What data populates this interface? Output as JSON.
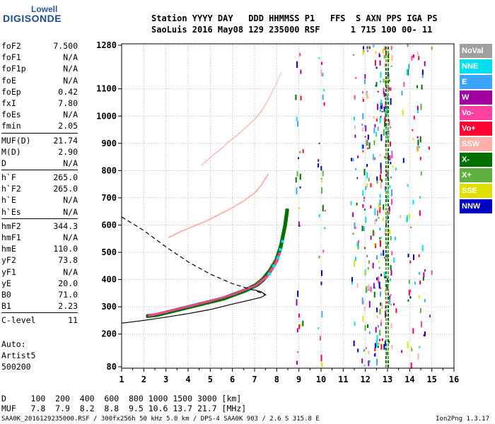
{
  "logo": {
    "line1": "Lowell",
    "line2": "DIGISONDE"
  },
  "header": {
    "labels": "Station YYYY DAY   DDD HHMMSS P1   FFS  S AXN PPS IGA PS",
    "values": "SaoLuis 2016 May08 129 235000 RSF      1 715 100 00- 11"
  },
  "params": {
    "group1": [
      {
        "name": "foF2",
        "value": "7.500"
      },
      {
        "name": "foF1",
        "value": "N/A"
      },
      {
        "name": "foF1p",
        "value": "N/A"
      },
      {
        "name": "foE",
        "value": "N/A"
      },
      {
        "name": "foEp",
        "value": "0.42"
      },
      {
        "name": "fxI",
        "value": "7.80"
      },
      {
        "name": "foEs",
        "value": "N/A"
      },
      {
        "name": "fmin",
        "value": "2.05"
      }
    ],
    "group2": [
      {
        "name": "MUF(D)",
        "value": "21.74"
      },
      {
        "name": "M(D)",
        "value": "2.90"
      },
      {
        "name": "D",
        "value": "N/A"
      }
    ],
    "group3": [
      {
        "name": "h`F",
        "value": "265.0"
      },
      {
        "name": "h`F2",
        "value": "265.0"
      },
      {
        "name": "h`E",
        "value": "N/A"
      },
      {
        "name": "h`Es",
        "value": "N/A"
      }
    ],
    "group4": [
      {
        "name": "hmF2",
        "value": "344.3"
      },
      {
        "name": "hmF1",
        "value": "N/A"
      },
      {
        "name": "hmE",
        "value": "110.0"
      },
      {
        "name": "yF2",
        "value": "73.8"
      },
      {
        "name": "yF1",
        "value": "N/A"
      },
      {
        "name": "yE",
        "value": "20.0"
      },
      {
        "name": "B0",
        "value": "71.0"
      },
      {
        "name": "B1",
        "value": "2.23"
      }
    ],
    "group5": [
      {
        "name": "C-level",
        "value": "11"
      }
    ]
  },
  "auto": {
    "line1": "Auto:",
    "line2": "Artist5",
    "line3": "500200"
  },
  "dtable": {
    "row1": "D     100  200  400  600  800 1000 1500 3000 [km]",
    "row2": "MUF   7.8  7.9  8.2  8.8  9.5 10.6 13.7 21.7 [MHz]"
  },
  "footer": {
    "left": "SAA0K_2016129235000.RSF / 300fx256h 50 kHz 5.0 km / DPS-4 SAA0K 903 / 2.6 S 315.8 E",
    "right": "Ion2Png 1.3.17"
  },
  "legend": [
    {
      "label": "NoVal",
      "color": "#a0a0a0"
    },
    {
      "label": "NNE",
      "color": "#00e0f0"
    },
    {
      "label": "E",
      "color": "#3aa6ff"
    },
    {
      "label": "W",
      "color": "#a000a0"
    },
    {
      "label": "Vo-",
      "color": "#ff40a0"
    },
    {
      "label": "Vo+",
      "color": "#ff0030"
    },
    {
      "label": "SSW",
      "color": "#ffb0a8"
    },
    {
      "label": "X-",
      "color": "#007000"
    },
    {
      "label": "X+",
      "color": "#60b040"
    },
    {
      "label": "SSE",
      "color": "#e0e000"
    },
    {
      "label": "NNW",
      "color": "#0000c0"
    }
  ],
  "chart_data": {
    "type": "scatter",
    "x_ticks": [
      "1",
      "2",
      "3",
      "4",
      "5",
      "6",
      "7",
      "8",
      "9",
      "10",
      "11",
      "12",
      "13",
      "14",
      "15",
      "16"
    ],
    "y_ticks": [
      "80",
      "200",
      "300",
      "400",
      "500",
      "600",
      "700",
      "800",
      "900",
      "1000",
      "1100",
      "1280"
    ],
    "xlim": [
      1,
      16
    ],
    "ylim": [
      80,
      1280
    ],
    "grid": true,
    "ordinary_trace": {
      "color": "#007000",
      "points": [
        [
          2.1,
          266
        ],
        [
          2.5,
          270
        ],
        [
          3.0,
          280
        ],
        [
          3.5,
          290
        ],
        [
          4.0,
          300
        ],
        [
          4.5,
          310
        ],
        [
          5.0,
          320
        ],
        [
          5.5,
          330
        ],
        [
          6.0,
          345
        ],
        [
          6.5,
          360
        ],
        [
          7.0,
          380
        ],
        [
          7.3,
          400
        ],
        [
          7.6,
          430
        ],
        [
          7.9,
          470
        ],
        [
          8.1,
          520
        ],
        [
          8.3,
          600
        ],
        [
          8.4,
          660
        ]
      ]
    },
    "extra_trace": {
      "color": "#ff40a0",
      "points": [
        [
          2.2,
          268
        ],
        [
          3.0,
          282
        ],
        [
          4.0,
          302
        ],
        [
          5.0,
          322
        ],
        [
          6.0,
          346
        ],
        [
          7.0,
          378
        ],
        [
          7.5,
          410
        ],
        [
          7.9,
          460
        ],
        [
          8.1,
          500
        ]
      ]
    },
    "multihop_trace": {
      "color": "#ffb0a8",
      "points": [
        [
          3.1,
          555
        ],
        [
          3.6,
          575
        ],
        [
          4.2,
          595
        ],
        [
          4.8,
          615
        ],
        [
          5.4,
          640
        ],
        [
          6.0,
          665
        ],
        [
          6.5,
          690
        ],
        [
          7.0,
          720
        ],
        [
          7.3,
          750
        ],
        [
          7.6,
          790
        ]
      ]
    },
    "third_trace": {
      "color": "#ffb0a8",
      "points": [
        [
          4.6,
          820
        ],
        [
          5.0,
          850
        ],
        [
          5.4,
          875
        ],
        [
          5.8,
          905
        ],
        [
          6.2,
          930
        ],
        [
          6.6,
          960
        ],
        [
          7.0,
          990
        ],
        [
          7.3,
          1020
        ],
        [
          7.6,
          1060
        ],
        [
          7.9,
          1110
        ],
        [
          8.2,
          1170
        ]
      ]
    },
    "profile_solid": [
      [
        1.0,
        240
      ],
      [
        2.0,
        250
      ],
      [
        3.0,
        262
      ],
      [
        4.0,
        275
      ],
      [
        5.0,
        290
      ],
      [
        6.0,
        310
      ],
      [
        6.8,
        325
      ],
      [
        7.3,
        335
      ],
      [
        7.5,
        344
      ],
      [
        7.3,
        355
      ],
      [
        7.0,
        362
      ]
    ],
    "profile_dashed": [
      [
        1.0,
        630
      ],
      [
        2.0,
        580
      ],
      [
        3.0,
        520
      ],
      [
        4.0,
        465
      ],
      [
        5.0,
        420
      ],
      [
        6.0,
        385
      ],
      [
        7.0,
        360
      ],
      [
        7.5,
        344
      ]
    ],
    "interference_columns": [
      9.0,
      10.0,
      11.5,
      12.0,
      12.5,
      12.8,
      13.0,
      14.0,
      14.5
    ]
  }
}
